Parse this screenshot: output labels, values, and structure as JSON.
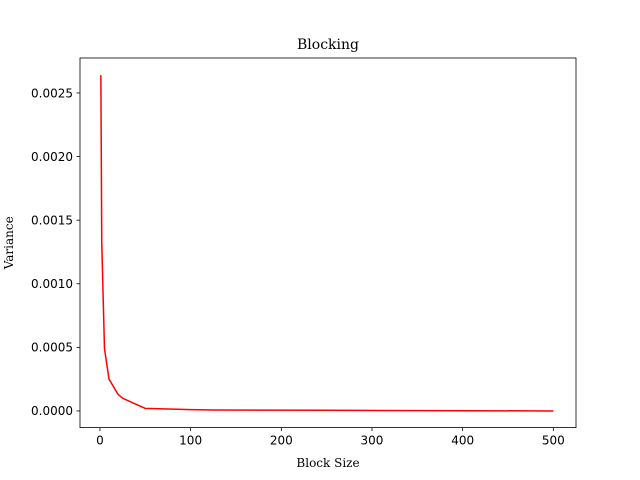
{
  "chart_data": {
    "type": "line",
    "title": "Blocking",
    "xlabel": "Block Size",
    "ylabel": "Variance",
    "xlim": [
      -22,
      525
    ],
    "ylim": [
      -0.000131,
      0.002775
    ],
    "xticks": [
      0,
      100,
      200,
      300,
      400,
      500
    ],
    "yticks": [
      0.0,
      0.0005,
      0.001,
      0.0015,
      0.002,
      0.0025
    ],
    "ytick_labels": [
      "0.0000",
      "0.0005",
      "0.0010",
      "0.0015",
      "0.0020",
      "0.0025"
    ],
    "grid": false,
    "legend": "none",
    "series": [
      {
        "color": "#ff0000",
        "x": [
          1,
          2,
          5,
          10,
          20,
          25,
          50,
          100,
          125,
          250,
          500
        ],
        "y": [
          0.00264,
          0.00132,
          0.00049,
          0.00025,
          0.00013,
          0.0001,
          2e-05,
          1e-05,
          7e-06,
          5e-06,
          0.0
        ]
      }
    ]
  }
}
